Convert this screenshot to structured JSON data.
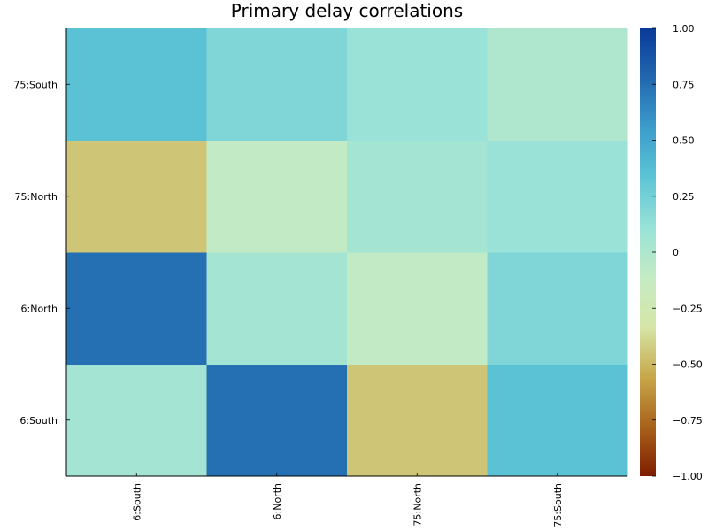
{
  "chart_data": {
    "type": "heatmap",
    "title": "Primary delay correlations",
    "xlabel": "",
    "ylabel": "",
    "x_categories": [
      "6:South",
      "6:North",
      "75:North",
      "75:South"
    ],
    "y_categories": [
      "6:South",
      "6:North",
      "75:North",
      "75:South"
    ],
    "values": [
      [
        0.05,
        0.75,
        -0.45,
        0.35
      ],
      [
        0.75,
        0.05,
        -0.1,
        0.2
      ],
      [
        -0.45,
        -0.1,
        0.05,
        0.1
      ],
      [
        0.35,
        0.2,
        0.1,
        0.0
      ]
    ],
    "colorbar": {
      "range": [
        -1.0,
        1.0
      ],
      "ticks": [
        -1.0,
        -0.75,
        -0.5,
        -0.25,
        0,
        0.25,
        0.5,
        0.75,
        1.0
      ],
      "tick_labels": [
        "−1.00",
        "−0.75",
        "−0.50",
        "−0.25",
        "0",
        "0.25",
        "0.50",
        "0.75",
        "1.00"
      ]
    },
    "colormap": [
      "#7f1c00",
      "#a8621a",
      "#c8a84a",
      "#d6e6a8",
      "#c4ebc4",
      "#98e2d8",
      "#5dc4d6",
      "#3c9ccb",
      "#2268b0",
      "#0a3a99"
    ],
    "grid": false,
    "legend": "none"
  }
}
